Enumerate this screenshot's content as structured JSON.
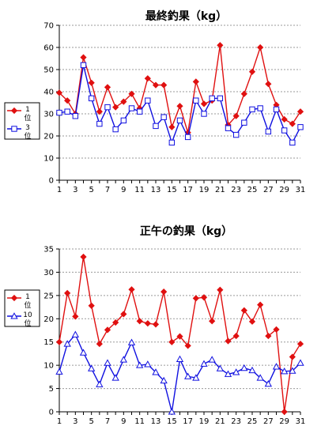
{
  "chart_data": [
    {
      "type": "line",
      "title": "最終釣果（kg）",
      "x": [
        1,
        2,
        3,
        4,
        5,
        6,
        7,
        8,
        9,
        10,
        11,
        12,
        13,
        14,
        15,
        16,
        17,
        18,
        19,
        20,
        21,
        22,
        23,
        24,
        25,
        26,
        27,
        28,
        29,
        30,
        31
      ],
      "xticks": [
        1,
        3,
        5,
        7,
        9,
        11,
        13,
        15,
        17,
        19,
        21,
        23,
        25,
        27,
        29,
        31
      ],
      "ylim": [
        0,
        70
      ],
      "yticks": [
        0,
        10,
        20,
        30,
        40,
        50,
        60,
        70
      ],
      "grid": "horizontal dashed",
      "legend": "left",
      "series": [
        {
          "name": "1位",
          "color": "#e01010",
          "marker": "filled-diamond",
          "values": [
            39.5,
            36,
            30,
            55.5,
            44,
            31,
            42,
            33,
            35.5,
            39,
            32.5,
            46,
            43,
            43,
            24,
            33.5,
            21.5,
            44.5,
            34.5,
            36,
            61,
            25,
            29,
            39,
            49,
            60,
            43.5,
            34,
            27.5,
            25.5,
            31
          ]
        },
        {
          "name": "3位",
          "color": "#1010e0",
          "marker": "hollow-square",
          "values": [
            30.5,
            31,
            29,
            52,
            37,
            25.5,
            33,
            23,
            27,
            32.5,
            31,
            36,
            24.5,
            28.5,
            17,
            27,
            19.5,
            36,
            30,
            37,
            37,
            23.5,
            20.5,
            26,
            32,
            32.5,
            22,
            32,
            22.5,
            17,
            24
          ]
        }
      ]
    },
    {
      "type": "line",
      "title": "正午の釣果（kg）",
      "x": [
        1,
        2,
        3,
        4,
        5,
        6,
        7,
        8,
        9,
        10,
        11,
        12,
        13,
        14,
        15,
        16,
        17,
        18,
        19,
        20,
        21,
        22,
        23,
        24,
        25,
        26,
        27,
        28,
        29,
        30,
        31
      ],
      "xticks": [
        1,
        3,
        5,
        7,
        9,
        11,
        13,
        15,
        17,
        19,
        21,
        23,
        25,
        27,
        29,
        31
      ],
      "ylim": [
        0,
        35
      ],
      "yticks": [
        0,
        5,
        10,
        15,
        20,
        25,
        30,
        35
      ],
      "grid": "horizontal dashed",
      "legend": "left",
      "series": [
        {
          "name": "1位",
          "color": "#e01010",
          "marker": "filled-diamond",
          "values": [
            15,
            25.5,
            20.5,
            33.3,
            22.8,
            14.6,
            17.6,
            19.2,
            21,
            26.3,
            19.5,
            19,
            18.8,
            25.8,
            15,
            16.2,
            14.2,
            24.4,
            24.6,
            19.5,
            26.2,
            15.2,
            16.3,
            21.8,
            19.4,
            23,
            16.3,
            17.7,
            0,
            11.8,
            14.6
          ]
        },
        {
          "name": "10位",
          "color": "#1010e0",
          "marker": "hollow-triangle",
          "values": [
            8.6,
            14.6,
            16.6,
            12.7,
            9.3,
            5.9,
            10.5,
            7.3,
            11.2,
            14.9,
            10,
            10.2,
            8.5,
            6.7,
            0,
            11.3,
            7.6,
            7.3,
            10.3,
            11.2,
            9.3,
            8.1,
            8.5,
            9.4,
            8.9,
            7.3,
            6,
            9.7,
            8.7,
            8.8,
            10.5
          ]
        }
      ]
    }
  ]
}
